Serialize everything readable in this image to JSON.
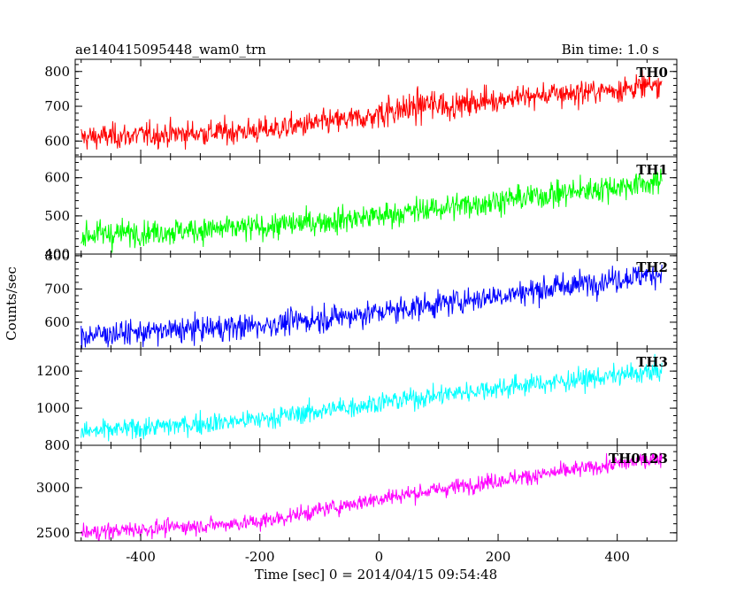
{
  "chart_data": {
    "type": "line",
    "title": "ae140415095448_wam0_trn",
    "subtitle": "Bin time: 1.0 s",
    "xlabel": "Time [sec] 0 = 2014/04/15 09:54:48",
    "ylabel": "Counts/sec",
    "xlim": [
      -510,
      500
    ],
    "xticks": [
      -400,
      -200,
      0,
      200,
      400
    ],
    "x_range_of_data": [
      -500,
      475
    ],
    "bin_time_s": 1.0,
    "panels": [
      {
        "name": "TH0",
        "color": "#ff0000",
        "ylim": [
          555,
          835
        ],
        "yticks": [
          600,
          700,
          800
        ],
        "trend": [
          [
            -500,
            610
          ],
          [
            -200,
            630
          ],
          [
            0,
            672
          ],
          [
            200,
            720
          ],
          [
            475,
            760
          ]
        ],
        "noise_sigma": 18,
        "burst": {
          "x": [
            0,
            110
          ],
          "amplitude": 35
        }
      },
      {
        "name": "TH1",
        "color": "#00ff00",
        "ylim": [
          400,
          655
        ],
        "yticks": [
          400,
          500,
          600
        ],
        "trend": [
          [
            -500,
            450
          ],
          [
            -200,
            470
          ],
          [
            0,
            500
          ],
          [
            200,
            540
          ],
          [
            475,
            590
          ]
        ],
        "noise_sigma": 17
      },
      {
        "name": "TH2",
        "color": "#0000ff",
        "ylim": [
          520,
          805
        ],
        "yticks": [
          600,
          700,
          800
        ],
        "trend": [
          [
            -500,
            560
          ],
          [
            -200,
            590
          ],
          [
            0,
            630
          ],
          [
            200,
            680
          ],
          [
            475,
            750
          ]
        ],
        "noise_sigma": 19
      },
      {
        "name": "TH3",
        "color": "#00ffff",
        "ylim": [
          800,
          1320
        ],
        "yticks": [
          800,
          1000,
          1200
        ],
        "trend": [
          [
            -500,
            870
          ],
          [
            -200,
            940
          ],
          [
            0,
            1030
          ],
          [
            200,
            1110
          ],
          [
            475,
            1200
          ]
        ],
        "noise_sigma": 28
      },
      {
        "name": "TH0123",
        "color": "#ff00ff",
        "ylim": [
          2410,
          3470
        ],
        "yticks": [
          2500,
          3000
        ],
        "trend": [
          [
            -500,
            2500
          ],
          [
            -200,
            2620
          ],
          [
            0,
            2880
          ],
          [
            200,
            3080
          ],
          [
            475,
            3330
          ]
        ],
        "noise_sigma": 45
      }
    ]
  }
}
